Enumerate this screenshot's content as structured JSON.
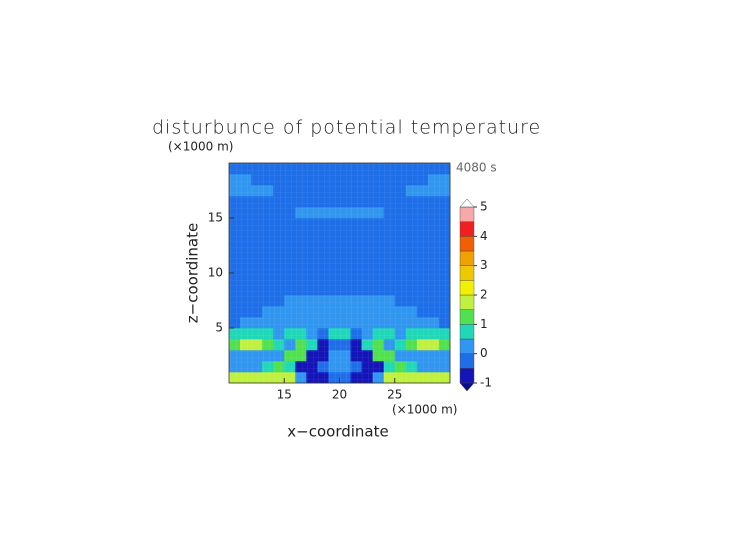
{
  "chart_data": {
    "type": "contour",
    "title": "disturbunce of potential temperature",
    "time_label": "4080 s",
    "x_label": "x−coordinate",
    "y_label": "z−coordinate",
    "x_unit": "(×1000 m)",
    "y_unit": "(×1000 m)",
    "xlim": [
      10,
      30
    ],
    "ylim": [
      0,
      20
    ],
    "xticks": [
      15,
      20,
      25
    ],
    "yticks": [
      5,
      10,
      15
    ],
    "x": [
      10.5,
      11.5,
      12.5,
      13.5,
      14.5,
      15.5,
      16.5,
      17.5,
      18.5,
      19.5,
      20.5,
      21.5,
      22.5,
      23.5,
      24.5,
      25.5,
      26.5,
      27.5,
      28.5,
      29.5
    ],
    "y": [
      0.5,
      1.5,
      2.5,
      3.5,
      4.5,
      5.5,
      6.5,
      7.5,
      8.5,
      9.5,
      10.5,
      11.5,
      12.5,
      13.5,
      14.5,
      15.5,
      16.5,
      17.5,
      18.5,
      19.5
    ],
    "z": [
      [
        1.7,
        1.8,
        1.8,
        1.8,
        1.8,
        1.7,
        0.3,
        -0.6,
        -0.7,
        -0.3,
        -0.3,
        -0.7,
        -0.6,
        0.3,
        1.7,
        1.8,
        1.8,
        1.8,
        1.8,
        1.7
      ],
      [
        0.3,
        0.3,
        0.2,
        0.6,
        1.2,
        0.8,
        -0.6,
        -0.8,
        -0.3,
        0.4,
        0.4,
        -0.3,
        -0.8,
        -0.6,
        0.8,
        1.2,
        0.6,
        0.2,
        0.3,
        0.3
      ],
      [
        0.2,
        0.3,
        0.4,
        0.3,
        0.2,
        1.0,
        1.2,
        -0.6,
        -0.7,
        0.2,
        0.2,
        -0.7,
        -0.6,
        1.2,
        1.0,
        0.2,
        0.3,
        0.4,
        0.3,
        0.2
      ],
      [
        1.3,
        1.7,
        1.7,
        1.4,
        0.6,
        0.3,
        1.1,
        0.8,
        -0.6,
        -0.2,
        -0.2,
        -0.6,
        0.8,
        1.1,
        0.3,
        0.6,
        1.4,
        1.7,
        1.7,
        1.3
      ],
      [
        0.5,
        0.8,
        0.8,
        0.6,
        0.3,
        0.5,
        0.6,
        0.2,
        -0.5,
        0.8,
        0.8,
        -0.5,
        0.2,
        0.6,
        0.5,
        0.3,
        0.6,
        0.8,
        0.8,
        0.5
      ],
      [
        -0.1,
        0.1,
        0.1,
        0.1,
        0.2,
        0.2,
        0.3,
        0.3,
        0.3,
        0.3,
        0.3,
        0.3,
        0.3,
        0.3,
        0.2,
        0.2,
        0.1,
        0.1,
        0.1,
        -0.1
      ],
      [
        -0.2,
        -0.2,
        -0.1,
        0.1,
        0.2,
        0.3,
        0.3,
        0.3,
        0.3,
        0.3,
        0.3,
        0.3,
        0.3,
        0.3,
        0.3,
        0.2,
        0.1,
        -0.1,
        -0.2,
        -0.2
      ],
      [
        -0.2,
        -0.2,
        -0.2,
        -0.2,
        -0.1,
        0.1,
        0.2,
        0.2,
        0.3,
        0.3,
        0.3,
        0.3,
        0.2,
        0.2,
        0.1,
        -0.1,
        -0.2,
        -0.2,
        -0.2,
        -0.2
      ],
      [
        -0.2,
        -0.2,
        -0.2,
        -0.2,
        -0.2,
        -0.2,
        -0.2,
        -0.2,
        -0.2,
        -0.2,
        -0.2,
        -0.2,
        -0.2,
        -0.2,
        -0.2,
        -0.2,
        -0.2,
        -0.2,
        -0.2,
        -0.2
      ],
      [
        -0.2,
        -0.2,
        -0.2,
        -0.2,
        -0.2,
        -0.2,
        -0.2,
        -0.2,
        -0.2,
        -0.2,
        -0.2,
        -0.2,
        -0.2,
        -0.2,
        -0.2,
        -0.2,
        -0.2,
        -0.2,
        -0.2,
        -0.2
      ],
      [
        -0.2,
        -0.2,
        -0.2,
        -0.2,
        -0.2,
        -0.2,
        -0.2,
        -0.2,
        -0.2,
        -0.2,
        -0.2,
        -0.2,
        -0.2,
        -0.2,
        -0.2,
        -0.2,
        -0.2,
        -0.2,
        -0.2,
        -0.2
      ],
      [
        -0.2,
        -0.2,
        -0.2,
        -0.2,
        -0.2,
        -0.2,
        -0.2,
        -0.2,
        -0.2,
        -0.2,
        -0.2,
        -0.2,
        -0.2,
        -0.2,
        -0.2,
        -0.2,
        -0.2,
        -0.2,
        -0.2,
        -0.2
      ],
      [
        -0.2,
        -0.2,
        -0.2,
        -0.2,
        -0.2,
        -0.2,
        -0.2,
        -0.2,
        -0.2,
        -0.2,
        -0.2,
        -0.2,
        -0.2,
        -0.2,
        -0.2,
        -0.2,
        -0.2,
        -0.2,
        -0.2,
        -0.2
      ],
      [
        -0.2,
        -0.2,
        -0.2,
        -0.2,
        -0.2,
        -0.2,
        -0.2,
        -0.2,
        -0.2,
        -0.2,
        -0.2,
        -0.2,
        -0.2,
        -0.2,
        -0.2,
        -0.2,
        -0.2,
        -0.2,
        -0.2,
        -0.2
      ],
      [
        -0.2,
        -0.2,
        -0.2,
        -0.2,
        -0.2,
        -0.2,
        -0.2,
        -0.2,
        -0.2,
        -0.2,
        -0.2,
        -0.2,
        -0.2,
        -0.2,
        -0.2,
        -0.2,
        -0.2,
        -0.2,
        -0.2,
        -0.2
      ],
      [
        -0.2,
        -0.2,
        -0.2,
        -0.2,
        -0.2,
        -0.2,
        0.1,
        0.2,
        0.2,
        0.2,
        0.2,
        0.2,
        0.2,
        0.1,
        -0.2,
        -0.2,
        -0.2,
        -0.2,
        -0.2,
        -0.2
      ],
      [
        -0.2,
        -0.2,
        -0.2,
        -0.2,
        -0.2,
        -0.2,
        -0.2,
        -0.2,
        -0.2,
        -0.2,
        -0.2,
        -0.2,
        -0.2,
        -0.2,
        -0.2,
        -0.2,
        -0.2,
        -0.2,
        -0.2,
        -0.2
      ],
      [
        0.1,
        0.2,
        0.2,
        0.1,
        -0.2,
        -0.2,
        -0.2,
        -0.2,
        -0.2,
        -0.2,
        -0.2,
        -0.2,
        -0.2,
        -0.2,
        -0.2,
        -0.2,
        0.1,
        0.2,
        0.2,
        0.1
      ],
      [
        0.1,
        0.1,
        -0.2,
        -0.2,
        -0.2,
        -0.2,
        -0.2,
        -0.2,
        -0.2,
        -0.2,
        -0.2,
        -0.2,
        -0.2,
        -0.2,
        -0.2,
        -0.2,
        -0.2,
        -0.2,
        0.1,
        0.1
      ],
      [
        -0.2,
        -0.2,
        -0.2,
        -0.2,
        -0.2,
        -0.2,
        -0.2,
        -0.2,
        -0.3,
        -0.3,
        -0.3,
        -0.3,
        -0.2,
        -0.2,
        -0.2,
        -0.2,
        -0.2,
        -0.2,
        -0.2,
        -0.2
      ]
    ],
    "colorbar": {
      "levels": [
        -1,
        -0.5,
        0,
        0.5,
        1,
        1.5,
        2,
        2.5,
        3,
        3.5,
        4,
        4.5,
        5
      ],
      "colors": [
        "#1414b8",
        "#1e6ee8",
        "#3096f0",
        "#20d8b8",
        "#50e050",
        "#c0f040",
        "#f0f000",
        "#f0c800",
        "#f0a000",
        "#f06000",
        "#f02020",
        "#f8a8a8"
      ],
      "under_color": "#0a0a90",
      "over_color": "#ffffff",
      "ticks": [
        -1,
        0,
        1,
        2,
        3,
        4,
        5
      ]
    }
  }
}
